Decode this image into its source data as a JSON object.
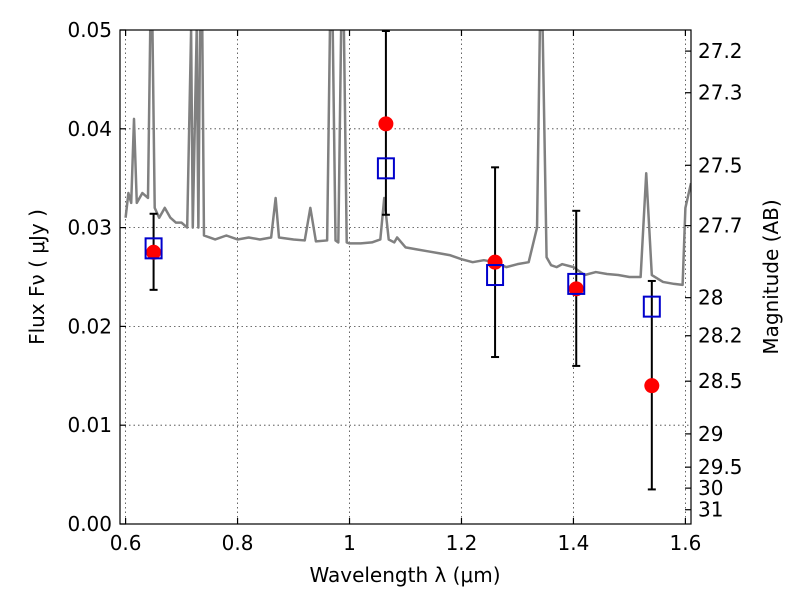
{
  "chart_data": {
    "type": "scatter",
    "xlabel": "Wavelength  λ (μm)",
    "ylabel": "Flux  Fν  ( μJy )",
    "ylabel_right": "Magnitude (AB)",
    "xlim": [
      0.59,
      1.61
    ],
    "ylim": [
      0.0,
      0.05
    ],
    "grid": true,
    "x_ticks": [
      0.6,
      0.8,
      1.0,
      1.2,
      1.4,
      1.6
    ],
    "x_tick_labels": [
      "0.6",
      "0.8",
      "1",
      "1.2",
      "1.4",
      "1.6"
    ],
    "y_ticks": [
      0.0,
      0.01,
      0.02,
      0.03,
      0.04,
      0.05
    ],
    "y_tick_labels": [
      "0.00",
      "0.01",
      "0.02",
      "0.03",
      "0.04",
      "0.05"
    ],
    "right_ticks": [
      {
        "mag": 27.2,
        "label": "27.2"
      },
      {
        "mag": 27.3,
        "label": "27.3"
      },
      {
        "mag": 27.5,
        "label": "27.5"
      },
      {
        "mag": 27.7,
        "label": "27.7"
      },
      {
        "mag": 28.0,
        "label": "28"
      },
      {
        "mag": 28.2,
        "label": "28.2"
      },
      {
        "mag": 28.5,
        "label": "28.5"
      },
      {
        "mag": 29.0,
        "label": "29"
      },
      {
        "mag": 29.5,
        "label": "29.5"
      },
      {
        "mag": 30.0,
        "label": "30"
      },
      {
        "mag": 31.0,
        "label": "31"
      }
    ],
    "series": [
      {
        "kind": "line",
        "color": "#808080",
        "points": [
          [
            0.6,
            0.031
          ],
          [
            0.605,
            0.0335
          ],
          [
            0.61,
            0.0325
          ],
          [
            0.615,
            0.041
          ],
          [
            0.62,
            0.0325
          ],
          [
            0.63,
            0.0335
          ],
          [
            0.64,
            0.033
          ],
          [
            0.644,
            0.05
          ],
          [
            0.648,
            0.05
          ],
          [
            0.652,
            0.032
          ],
          [
            0.66,
            0.031
          ],
          [
            0.67,
            0.032
          ],
          [
            0.68,
            0.031
          ],
          [
            0.69,
            0.0305
          ],
          [
            0.7,
            0.0305
          ],
          [
            0.71,
            0.03
          ],
          [
            0.717,
            0.05
          ],
          [
            0.72,
            0.03
          ],
          [
            0.727,
            0.05
          ],
          [
            0.73,
            0.03
          ],
          [
            0.733,
            0.05
          ],
          [
            0.737,
            0.05
          ],
          [
            0.74,
            0.0292
          ],
          [
            0.75,
            0.029
          ],
          [
            0.76,
            0.0288
          ],
          [
            0.78,
            0.0292
          ],
          [
            0.8,
            0.0288
          ],
          [
            0.82,
            0.029
          ],
          [
            0.84,
            0.0288
          ],
          [
            0.86,
            0.029
          ],
          [
            0.868,
            0.033
          ],
          [
            0.874,
            0.029
          ],
          [
            0.9,
            0.0288
          ],
          [
            0.92,
            0.0287
          ],
          [
            0.93,
            0.032
          ],
          [
            0.94,
            0.0286
          ],
          [
            0.96,
            0.0287
          ],
          [
            0.965,
            0.05
          ],
          [
            0.97,
            0.05
          ],
          [
            0.975,
            0.0287
          ],
          [
            0.98,
            0.0285
          ],
          [
            0.985,
            0.05
          ],
          [
            0.99,
            0.05
          ],
          [
            0.995,
            0.0285
          ],
          [
            1.0,
            0.0284
          ],
          [
            1.02,
            0.0284
          ],
          [
            1.04,
            0.0285
          ],
          [
            1.055,
            0.0288
          ],
          [
            1.062,
            0.033
          ],
          [
            1.07,
            0.0288
          ],
          [
            1.08,
            0.0285
          ],
          [
            1.085,
            0.029
          ],
          [
            1.1,
            0.028
          ],
          [
            1.12,
            0.0278
          ],
          [
            1.14,
            0.0276
          ],
          [
            1.16,
            0.0274
          ],
          [
            1.18,
            0.0272
          ],
          [
            1.2,
            0.0268
          ],
          [
            1.22,
            0.0265
          ],
          [
            1.24,
            0.0267
          ],
          [
            1.26,
            0.0265
          ],
          [
            1.28,
            0.026
          ],
          [
            1.3,
            0.0263
          ],
          [
            1.32,
            0.0265
          ],
          [
            1.335,
            0.03
          ],
          [
            1.34,
            0.05
          ],
          [
            1.345,
            0.05
          ],
          [
            1.352,
            0.027
          ],
          [
            1.36,
            0.0262
          ],
          [
            1.37,
            0.026
          ],
          [
            1.38,
            0.0263
          ],
          [
            1.4,
            0.026
          ],
          [
            1.42,
            0.0252
          ],
          [
            1.44,
            0.0255
          ],
          [
            1.46,
            0.0253
          ],
          [
            1.48,
            0.0252
          ],
          [
            1.5,
            0.025
          ],
          [
            1.52,
            0.025
          ],
          [
            1.53,
            0.0355
          ],
          [
            1.54,
            0.0252
          ],
          [
            1.56,
            0.0245
          ],
          [
            1.58,
            0.0243
          ],
          [
            1.595,
            0.0242
          ],
          [
            1.6,
            0.032
          ],
          [
            1.61,
            0.0345
          ]
        ]
      },
      {
        "kind": "points",
        "marker": "circle",
        "color": "#ff0000",
        "x": [
          0.65,
          1.065,
          1.26,
          1.405,
          1.54
        ],
        "y": [
          0.0275,
          0.0405,
          0.0265,
          0.0238,
          0.014
        ]
      },
      {
        "kind": "errorbars",
        "color": "#000000",
        "x": [
          0.65,
          1.065,
          1.26,
          1.405,
          1.54
        ],
        "low": [
          0.0237,
          0.0313,
          0.0169,
          0.016,
          0.0035
        ],
        "high": [
          0.0314,
          0.0499,
          0.0361,
          0.0317,
          0.0246
        ]
      },
      {
        "kind": "points",
        "marker": "square",
        "color": "#0000cc",
        "x": [
          0.65,
          1.065,
          1.26,
          1.405,
          1.54
        ],
        "y": [
          0.0279,
          0.036,
          0.0252,
          0.0243,
          0.022
        ]
      }
    ]
  }
}
